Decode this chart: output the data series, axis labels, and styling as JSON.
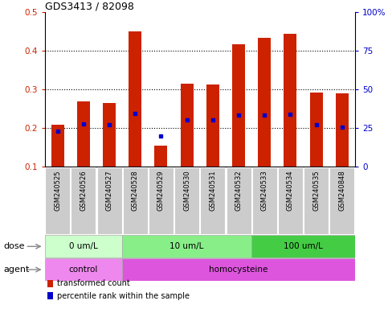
{
  "title": "GDS3413 / 82098",
  "samples": [
    "GSM240525",
    "GSM240526",
    "GSM240527",
    "GSM240528",
    "GSM240529",
    "GSM240530",
    "GSM240531",
    "GSM240532",
    "GSM240533",
    "GSM240534",
    "GSM240535",
    "GSM240848"
  ],
  "transformed_count": [
    0.21,
    0.27,
    0.265,
    0.45,
    0.155,
    0.315,
    0.313,
    0.418,
    0.435,
    0.445,
    0.292,
    0.291
  ],
  "percentile_rank": [
    0.192,
    0.212,
    0.21,
    0.238,
    0.18,
    0.222,
    0.221,
    0.235,
    0.235,
    0.236,
    0.21,
    0.203
  ],
  "bar_bottom": 0.1,
  "ylim_left": [
    0.1,
    0.5
  ],
  "ylim_right": [
    0,
    100
  ],
  "yticks_left": [
    0.1,
    0.2,
    0.3,
    0.4,
    0.5
  ],
  "yticks_right": [
    0,
    25,
    50,
    75,
    100
  ],
  "ytick_labels_right": [
    "0",
    "25",
    "50",
    "75",
    "100%"
  ],
  "red_color": "#cc2200",
  "blue_color": "#0000cc",
  "dose_groups": [
    {
      "label": "0 um/L",
      "start": 0,
      "end": 3,
      "color": "#ccffcc"
    },
    {
      "label": "10 um/L",
      "start": 3,
      "end": 8,
      "color": "#88ee88"
    },
    {
      "label": "100 um/L",
      "start": 8,
      "end": 12,
      "color": "#44cc44"
    }
  ],
  "agent_groups": [
    {
      "label": "control",
      "start": 0,
      "end": 3,
      "color": "#ee88ee"
    },
    {
      "label": "homocysteine",
      "start": 3,
      "end": 12,
      "color": "#dd55dd"
    }
  ],
  "legend_items": [
    {
      "label": "transformed count",
      "color": "#cc2200"
    },
    {
      "label": "percentile rank within the sample",
      "color": "#0000cc"
    }
  ],
  "bar_width": 0.5,
  "xticklabel_bg": "#cccccc",
  "dose_label": "dose",
  "agent_label": "agent",
  "grid_yticks": [
    0.2,
    0.3,
    0.4
  ]
}
